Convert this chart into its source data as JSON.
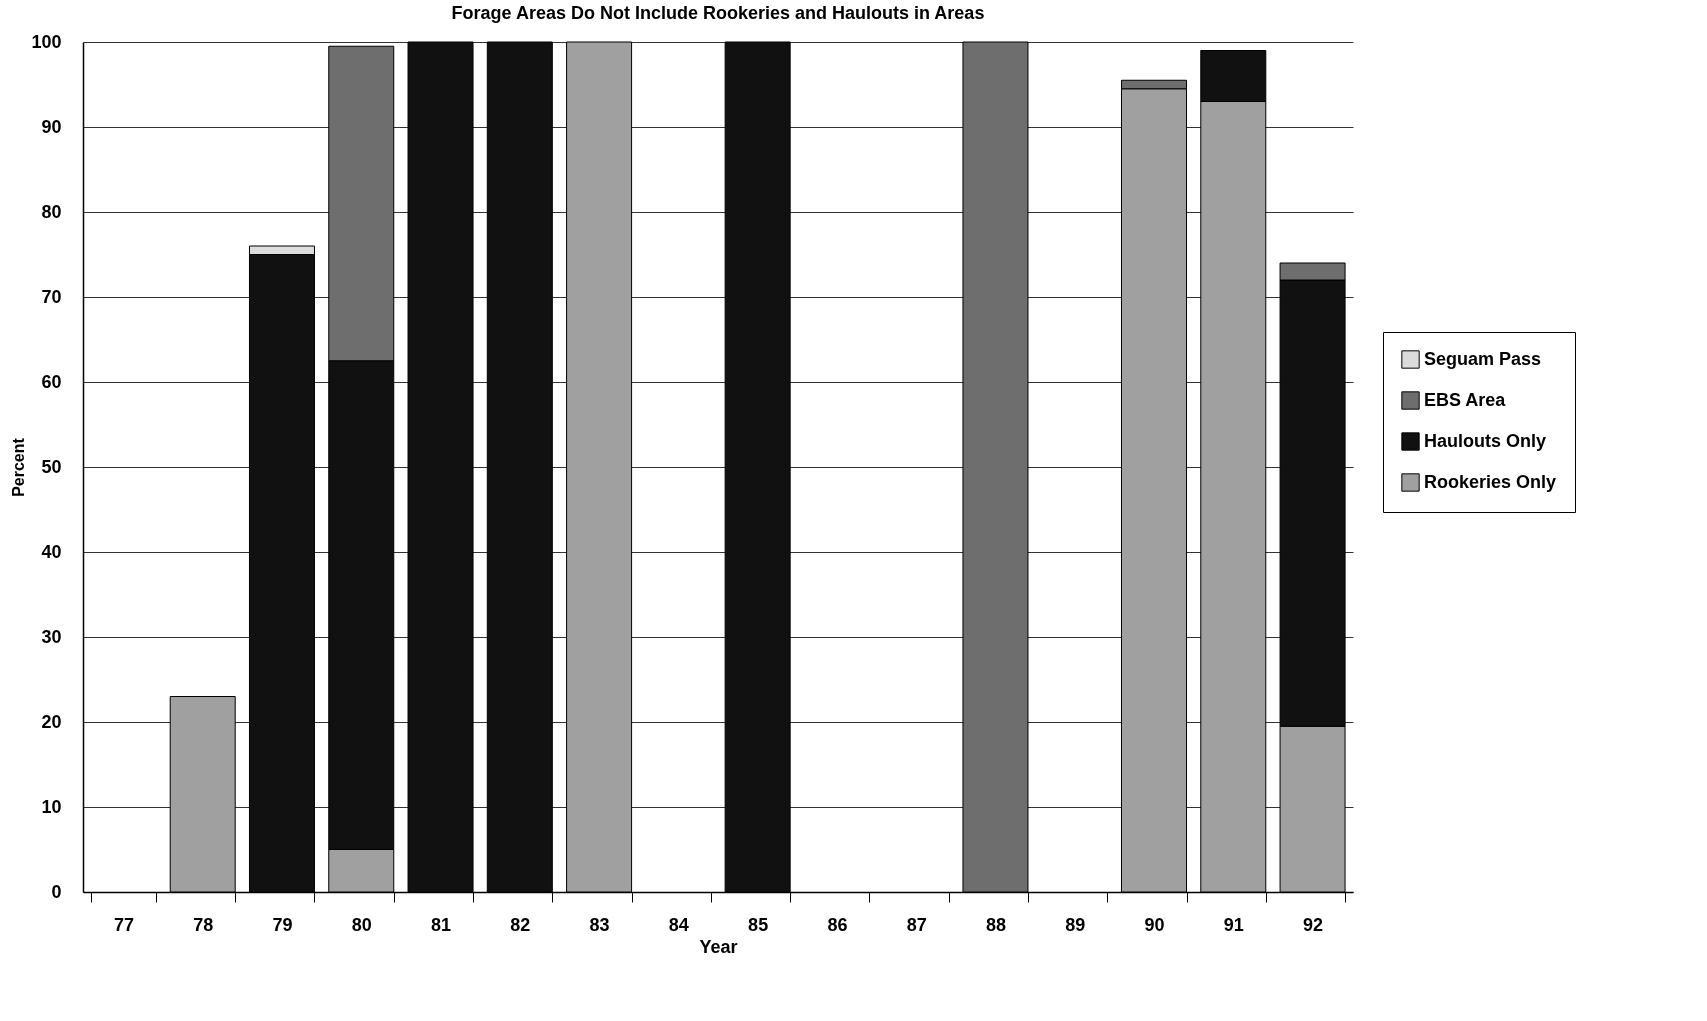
{
  "chart_data": {
    "type": "bar",
    "title": "Forage Areas Do Not Include Rookeries and Haulouts in Areas",
    "xlabel": "Year",
    "ylabel": "Percent",
    "categories": [
      "77",
      "78",
      "79",
      "80",
      "81",
      "82",
      "83",
      "84",
      "85",
      "86",
      "87",
      "88",
      "89",
      "90",
      "91",
      "92"
    ],
    "stacked": true,
    "ylim": [
      0,
      100
    ],
    "yticks": [
      0,
      10,
      20,
      30,
      40,
      50,
      60,
      70,
      80,
      90,
      100
    ],
    "grid": "y",
    "legend": "right",
    "series": [
      {
        "name": "Rookeries Only",
        "color": "#a0a0a0",
        "values": [
          null,
          23,
          null,
          5,
          null,
          null,
          100,
          null,
          null,
          null,
          null,
          null,
          null,
          94.5,
          93,
          19.5
        ]
      },
      {
        "name": "Haulouts Only",
        "color": "#111111",
        "values": [
          null,
          null,
          75,
          57.5,
          100,
          100,
          null,
          null,
          100,
          null,
          null,
          null,
          null,
          null,
          6,
          52.5
        ]
      },
      {
        "name": "EBS Area",
        "color": "#6e6e6e",
        "values": [
          null,
          null,
          null,
          37,
          null,
          null,
          null,
          null,
          null,
          null,
          null,
          100,
          null,
          1,
          null,
          2
        ]
      },
      {
        "name": "Seguam Pass",
        "color": "#dcdcdc",
        "values": [
          null,
          null,
          1,
          null,
          null,
          null,
          null,
          null,
          null,
          null,
          null,
          null,
          null,
          null,
          null,
          null
        ]
      }
    ]
  }
}
